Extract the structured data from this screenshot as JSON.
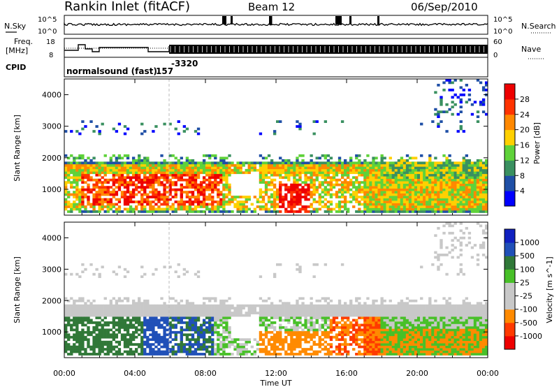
{
  "header": {
    "station": "Rankin Inlet (fitACF)",
    "beam": "Beam 12",
    "date": "06/Sep/2010"
  },
  "sky_panel": {
    "left_label": "N.Sky",
    "right_label": "N.Search",
    "left_ticks": [
      "10^5",
      "10^0"
    ],
    "right_ticks": [
      "10^5",
      "10^0"
    ]
  },
  "freq_panel": {
    "left_label": "Freq.",
    "left_unit": "[MHz]",
    "right_label": "Nave",
    "left_ticks": [
      "18",
      "8"
    ],
    "right_ticks": [
      "60",
      "0"
    ]
  },
  "cpid": {
    "label": "CPID",
    "mode_text": "normalsound (fast)",
    "id_a": "157",
    "id_b": "-3320"
  },
  "colors": {
    "power": [
      "#0000ff",
      "#1f4fa6",
      "#3a9060",
      "#5fd23a",
      "#ffd000",
      "#ff8800",
      "#ff3300",
      "#ee0000"
    ],
    "velocity": [
      "#ee0000",
      "#ff3a00",
      "#ff8a00",
      "#c8c8c8",
      "#c8c8c8",
      "#48c028",
      "#307838",
      "#2050b8",
      "#1020c0"
    ]
  },
  "chart_data": [
    {
      "type": "heatmap",
      "name": "power",
      "ylabel": "Slant Range [km]",
      "colorbar_label": "Power [dB]",
      "colorbar_ticks": [
        "28",
        "24",
        "20",
        "16",
        "12",
        "8",
        "4"
      ],
      "ylim": [
        180,
        4500
      ],
      "yticks": [
        "4000",
        "3000",
        "2000",
        "1000"
      ]
    },
    {
      "type": "heatmap",
      "name": "velocity",
      "xlabel": "Time UT",
      "ylabel": "Slant Range [km]",
      "colorbar_label": "Velocity [m s^-1]",
      "colorbar_ticks": [
        "1000",
        "500",
        "100",
        "25",
        "-25",
        "-100",
        "-500",
        "-1000"
      ],
      "ylim": [
        180,
        4500
      ],
      "yticks": [
        "4000",
        "3000",
        "2000",
        "1000"
      ],
      "xticks": [
        "00:00",
        "04:00",
        "08:00",
        "12:00",
        "16:00",
        "20:00",
        "00:00"
      ]
    }
  ]
}
